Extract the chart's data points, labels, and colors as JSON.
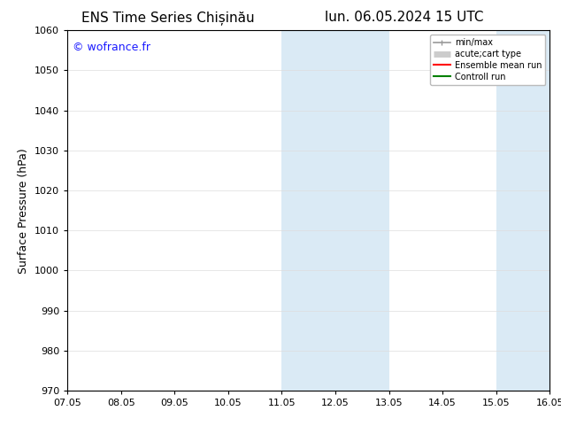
{
  "title_left": "ENS Time Series Chișinău",
  "title_right": "lun. 06.05.2024 15 UTC",
  "ylabel": "Surface Pressure (hPa)",
  "ylim": [
    970,
    1060
  ],
  "yticks": [
    970,
    980,
    990,
    1000,
    1010,
    1020,
    1030,
    1040,
    1050,
    1060
  ],
  "xtick_labels": [
    "07.05",
    "08.05",
    "09.05",
    "10.05",
    "11.05",
    "12.05",
    "13.05",
    "14.05",
    "15.05",
    "16.05"
  ],
  "xtick_positions": [
    0,
    1,
    2,
    3,
    4,
    5,
    6,
    7,
    8,
    9
  ],
  "shaded_regions": [
    {
      "xmin": 4,
      "xmax": 6,
      "color": "#daeaf5"
    },
    {
      "xmin": 8,
      "xmax": 9,
      "color": "#daeaf5"
    }
  ],
  "watermark": "© wofrance.fr",
  "watermark_color": "#1a1aff",
  "background_color": "#ffffff",
  "legend_entries": [
    {
      "label": "min/max",
      "color": "#999999",
      "lw": 1.2
    },
    {
      "label": "acute;cart type",
      "color": "#cccccc",
      "lw": 5
    },
    {
      "label": "Ensemble mean run",
      "color": "#ff0000",
      "lw": 1.5
    },
    {
      "label": "Controll run",
      "color": "#008000",
      "lw": 1.5
    }
  ],
  "grid_color": "#dddddd",
  "title_fontsize": 11,
  "ylabel_fontsize": 9,
  "tick_fontsize": 8,
  "legend_fontsize": 7,
  "watermark_fontsize": 9
}
